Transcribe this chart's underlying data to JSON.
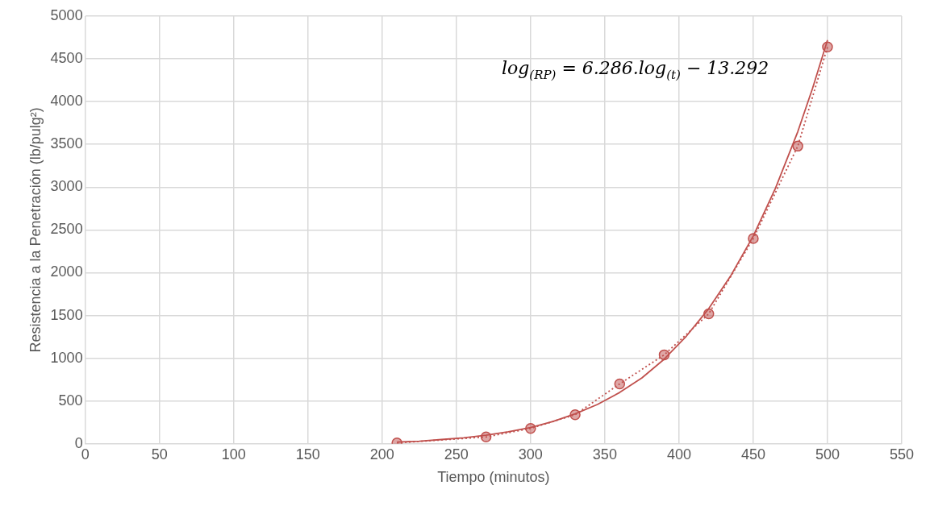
{
  "chart_data": {
    "type": "line",
    "xlabel": "Tiempo (minutos)",
    "ylabel": "Resistencia a la Penetración (lb/pulg²)",
    "xlim": [
      0,
      550
    ],
    "xticks": [
      0,
      50,
      100,
      150,
      200,
      250,
      300,
      350,
      400,
      450,
      500,
      550
    ],
    "ylim": [
      0,
      5000
    ],
    "yticks": [
      0,
      500,
      1000,
      1500,
      2000,
      2500,
      3000,
      3500,
      4000,
      4500,
      5000
    ],
    "grid": true,
    "legend": false,
    "series": [
      {
        "color": "#c0504d",
        "marker": "circle",
        "line_style": "dotted",
        "x": [
          210,
          270,
          300,
          330,
          360,
          390,
          420,
          450,
          480,
          500
        ],
        "values": [
          10,
          80,
          180,
          340,
          700,
          1040,
          1520,
          2400,
          3480,
          4640
        ]
      },
      {
        "color": "#c0504d",
        "marker": "none",
        "line_style": "solid",
        "x": [
          210,
          225,
          240,
          255,
          270,
          285,
          300,
          315,
          330,
          345,
          360,
          375,
          390,
          405,
          420,
          435,
          450,
          465,
          480,
          490,
          500
        ],
        "values": [
          20,
          30,
          50,
          70,
          100,
          140,
          190,
          260,
          350,
          460,
          600,
          770,
          990,
          1260,
          1580,
          1970,
          2430,
          2990,
          3650,
          4160,
          4720
        ]
      }
    ],
    "annotations": [
      "log$_{(RP)}$ = 6.286.log$_{(t)}$ − 13.292"
    ]
  }
}
